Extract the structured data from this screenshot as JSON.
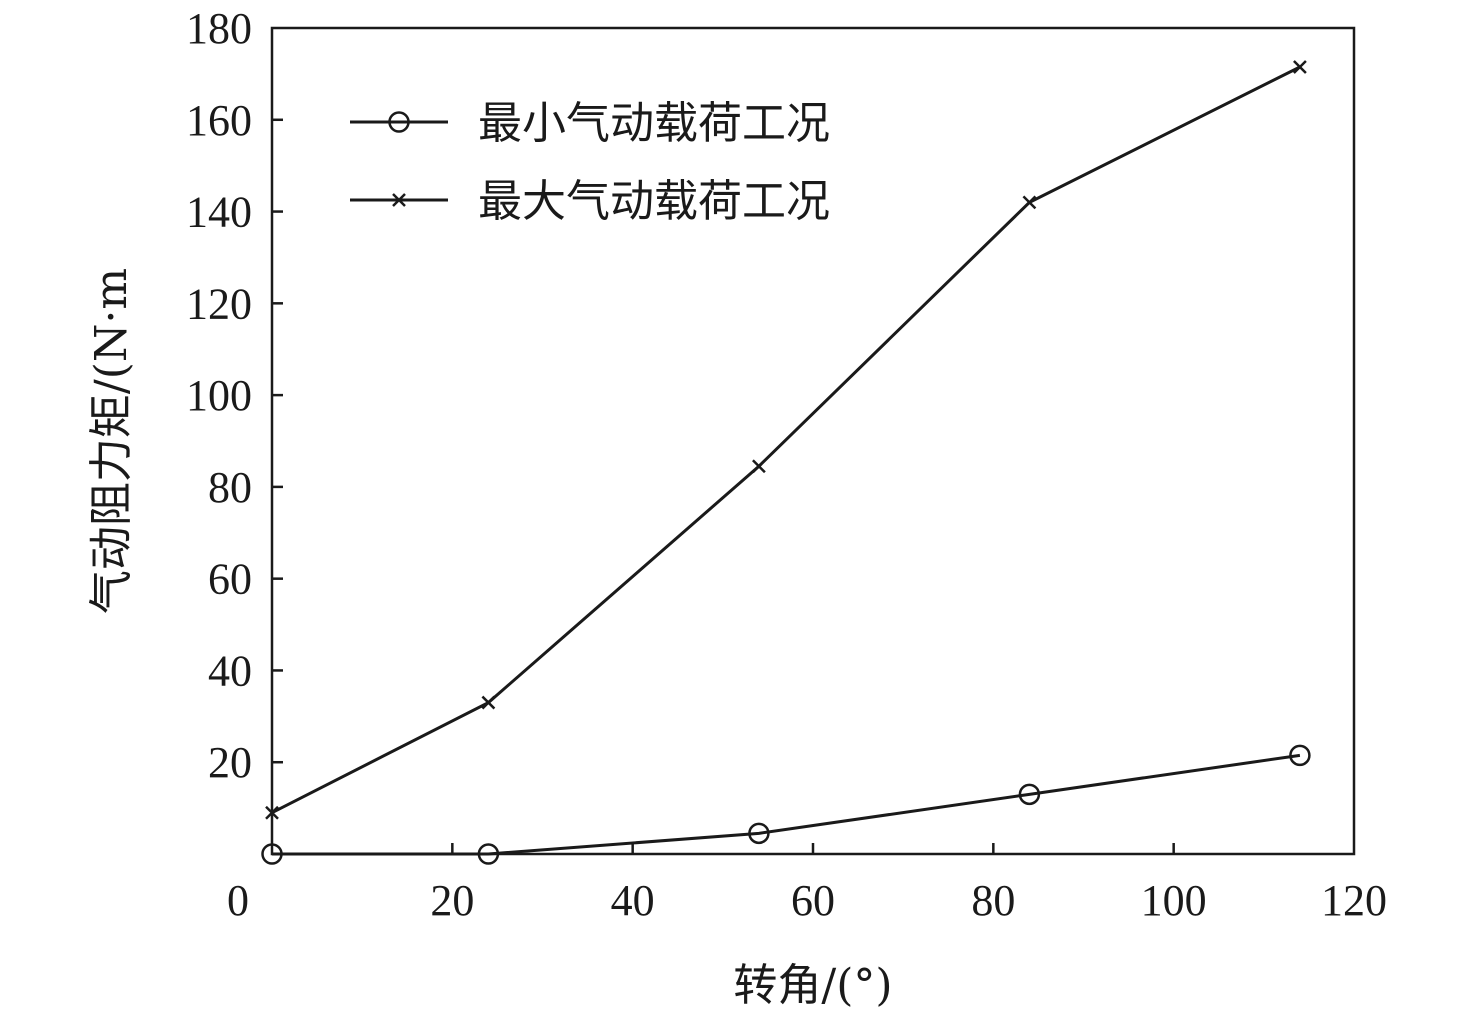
{
  "chart_data": {
    "type": "line",
    "xlabel": "转角/(°)",
    "ylabel": "气动阻力矩/(N·m",
    "xlim": [
      0,
      120
    ],
    "ylim": [
      0,
      180
    ],
    "xticks": [
      0,
      20,
      40,
      60,
      80,
      100,
      120
    ],
    "yticks": [
      20,
      40,
      60,
      80,
      100,
      120,
      140,
      160,
      180
    ],
    "grid": false,
    "legend_position": "top-left",
    "series": [
      {
        "name": "最小气动载荷工况",
        "marker": "circle",
        "x": [
          0,
          24,
          54,
          84,
          114
        ],
        "y": [
          0,
          0,
          4.5,
          13,
          21.5
        ]
      },
      {
        "name": "最大气动载荷工况",
        "marker": "x",
        "x": [
          0,
          24,
          54,
          84,
          114
        ],
        "y": [
          9,
          33,
          84.5,
          142,
          171.5
        ]
      }
    ]
  }
}
